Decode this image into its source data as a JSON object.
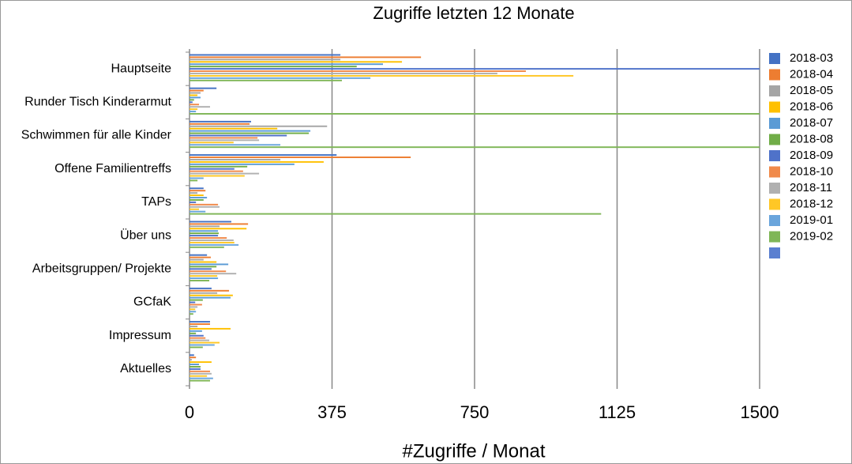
{
  "chart_data": {
    "type": "bar",
    "orientation": "horizontal",
    "title": "Zugriffe letzten 12 Monate",
    "x_label": "#Zugriffe / Monat",
    "categories": [
      "Hauptseite",
      "Runder Tisch Kinderarmut",
      "Schwimmen für alle Kinder",
      "Offene Familientreffs",
      "TAPs",
      "Über uns",
      "Arbeitsgruppen/ Projekte",
      "GCfaK",
      "Impressum",
      "Aktuelles"
    ],
    "series": [
      {
        "name": "2018-03",
        "color": "#4472c4",
        "values": [
          397,
          71,
          162,
          387,
          37,
          110,
          46,
          58,
          54,
          12
        ]
      },
      {
        "name": "2018-04",
        "color": "#ed7d31",
        "values": [
          609,
          37,
          158,
          582,
          42,
          154,
          56,
          104,
          54,
          17
        ]
      },
      {
        "name": "2018-05",
        "color": "#a5a5a5",
        "values": [
          397,
          29,
          362,
          239,
          21,
          79,
          37,
          73,
          21,
          6
        ]
      },
      {
        "name": "2018-06",
        "color": "#ffc000",
        "values": [
          559,
          21,
          231,
          353,
          37,
          150,
          71,
          114,
          108,
          58
        ]
      },
      {
        "name": "2018-07",
        "color": "#5b9bd5",
        "values": [
          509,
          29,
          318,
          276,
          46,
          75,
          102,
          108,
          33,
          25
        ]
      },
      {
        "name": "2018-08",
        "color": "#70ad47",
        "values": [
          440,
          12,
          314,
          152,
          37,
          77,
          71,
          35,
          17,
          29
        ]
      },
      {
        "name": "2018-09",
        "color": "#4f72c9",
        "values": [
          1600,
          8,
          256,
          118,
          17,
          75,
          58,
          15,
          37,
          29
        ]
      },
      {
        "name": "2018-10",
        "color": "#f08a4b",
        "values": [
          885,
          25,
          179,
          141,
          75,
          98,
          96,
          33,
          42,
          54
        ]
      },
      {
        "name": "2018-11",
        "color": "#b0b0b0",
        "values": [
          810,
          54,
          183,
          183,
          79,
          116,
          123,
          21,
          52,
          58
        ]
      },
      {
        "name": "2018-12",
        "color": "#ffc726",
        "values": [
          1010,
          21,
          116,
          145,
          25,
          118,
          73,
          15,
          79,
          46
        ]
      },
      {
        "name": "2019-01",
        "color": "#6aa5dc",
        "values": [
          476,
          17,
          239,
          37,
          42,
          129,
          75,
          17,
          66,
          62
        ]
      },
      {
        "name": "2019-02",
        "color": "#7fb657",
        "values": [
          401,
          1600,
          1600,
          21,
          1083,
          91,
          52,
          10,
          35,
          54
        ]
      },
      {
        "color": "#5a7fd0",
        "values": [
          0,
          0,
          0,
          0,
          0,
          0,
          0,
          0,
          0,
          0
        ]
      }
    ],
    "xlim": [
      0,
      1500
    ],
    "xticks": [
      0,
      375,
      750,
      1125,
      1500
    ],
    "grid": true,
    "legend": "right"
  }
}
